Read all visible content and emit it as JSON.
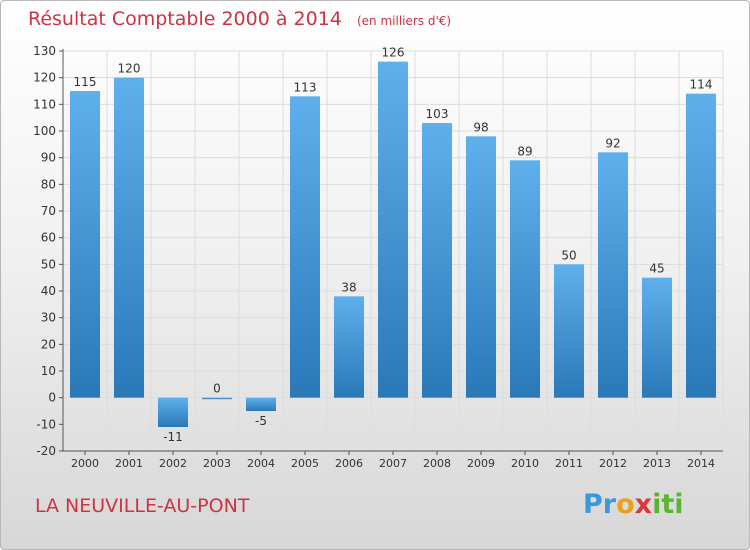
{
  "header": {
    "title": "Résultat Comptable 2000 à 2014",
    "subtitle": "(en milliers d'€)"
  },
  "footer": {
    "commune": "LA NEUVILLE-AU-PONT",
    "logo": "Proxiti"
  },
  "colors": {
    "bar_top": "#5eb0ec",
    "bar_bottom": "#2a78b8",
    "title": "#cc3344"
  },
  "chart_data": {
    "type": "bar",
    "title": "Résultat Comptable 2000 à 2014",
    "subtitle": "(en milliers d'€)",
    "categories": [
      "2000",
      "2001",
      "2002",
      "2003",
      "2004",
      "2005",
      "2006",
      "2007",
      "2008",
      "2009",
      "2010",
      "2011",
      "2012",
      "2013",
      "2014"
    ],
    "values": [
      115,
      120,
      -11,
      0,
      -5,
      113,
      38,
      126,
      103,
      98,
      89,
      50,
      92,
      45,
      114
    ],
    "data_labels": [
      "115",
      "120",
      "-11",
      "0",
      "-5",
      "113",
      "38",
      "126",
      "103",
      "98",
      "89",
      "50",
      "92",
      "45",
      "114"
    ],
    "ylim": [
      -20,
      130
    ],
    "yticks": [
      -20,
      -10,
      0,
      10,
      20,
      30,
      40,
      50,
      60,
      70,
      80,
      90,
      100,
      110,
      120,
      130
    ],
    "grid": true,
    "xlabel": "",
    "ylabel": ""
  }
}
